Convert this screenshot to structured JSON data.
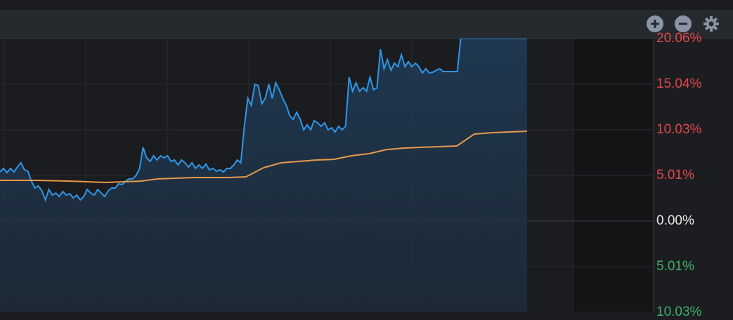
{
  "toolbar": {
    "zoom_in_icon": "plus-circle-icon",
    "zoom_out_icon": "minus-circle-icon",
    "settings_icon": "gear-icon"
  },
  "chart_data": {
    "type": "line",
    "ylabel": "",
    "xlabel": "",
    "y_tick_labels": [
      {
        "value": 20.06,
        "label": "20.06%",
        "color": "#e0474c"
      },
      {
        "value": 15.04,
        "label": "15.04%",
        "color": "#e0474c"
      },
      {
        "value": 10.03,
        "label": "10.03%",
        "color": "#e0474c"
      },
      {
        "value": 5.01,
        "label": "5.01%",
        "color": "#e0474c"
      },
      {
        "value": 0,
        "label": "0.00%",
        "color": "#e6e6e6"
      },
      {
        "value": -5.01,
        "label": "5.01%",
        "color": "#3fae6a"
      },
      {
        "value": -10.03,
        "label": "10.03%",
        "color": "#3fae6a"
      }
    ],
    "ylim": [
      -10.03,
      20.06
    ],
    "grid": true,
    "series": [
      {
        "color": "#2f96e8",
        "fill": true,
        "values": [
          5.4,
          5.78,
          5.32,
          5.78,
          5.4,
          5.94,
          6.4,
          5.63,
          5.47,
          4.39,
          3.62,
          3.86,
          3.32,
          2.31,
          3.47,
          2.85,
          3.08,
          2.7,
          3.24,
          2.85,
          3.01,
          2.54,
          2.85,
          2.31,
          2.7,
          3.47,
          3.08,
          2.85,
          3.47,
          3.08,
          2.7,
          3.32,
          3.62,
          3.62,
          4.09,
          4.01,
          4.39,
          4.63,
          4.63,
          5.01,
          5.78,
          8.1,
          6.94,
          6.55,
          7.17,
          6.71,
          7.17,
          6.94,
          7.17,
          6.55,
          6.71,
          6.17,
          6.71,
          6.4,
          5.94,
          6.4,
          5.78,
          6.17,
          5.78,
          6.25,
          5.63,
          5.78,
          5.47,
          5.63,
          5.4,
          5.78,
          5.78,
          6.17,
          6.71,
          6.4,
          10.41,
          13.49,
          12.72,
          15.03,
          14.88,
          12.88,
          13.49,
          15.03,
          13.49,
          15.19,
          14.42,
          13.49,
          12.72,
          11.57,
          11.18,
          11.95,
          11.18,
          10.02,
          10.56,
          10.02,
          11.03,
          10.79,
          10.41,
          10.79,
          10.02,
          10.25,
          9.79,
          10.41,
          10.02,
          10.41,
          15.81,
          14.26,
          15.19,
          14.26,
          14.65,
          14.26,
          15.81,
          14.42,
          14.65,
          18.89,
          16.73,
          17.73,
          16.58,
          17.35,
          16.96,
          18.27,
          16.96,
          17.5,
          16.96,
          17.35,
          16.96,
          16.27,
          16.73,
          16.27,
          16.35,
          16.58,
          16.73,
          16.42,
          16.42,
          16.42,
          16.42,
          16.42,
          20.06,
          20.06,
          20.06,
          20.06,
          20.06,
          20.06,
          20.06,
          20.06,
          20.06,
          20.06,
          20.06,
          20.06,
          20.06,
          20.06,
          20.06,
          20.06,
          20.06,
          20.06,
          20.06,
          20.06
        ]
      },
      {
        "color": "#e89a4c",
        "fill": false,
        "values": [
          4.47,
          4.47,
          4.47,
          4.43,
          4.39,
          4.32,
          4.24,
          4.32,
          4.39,
          4.63,
          4.7,
          4.78,
          4.78,
          4.78,
          4.86,
          5.86,
          6.4,
          6.55,
          6.71,
          6.78,
          7.17,
          7.4,
          7.86,
          8.02,
          8.1,
          8.17,
          8.25,
          9.56,
          9.71,
          9.79,
          9.87
        ]
      }
    ]
  }
}
